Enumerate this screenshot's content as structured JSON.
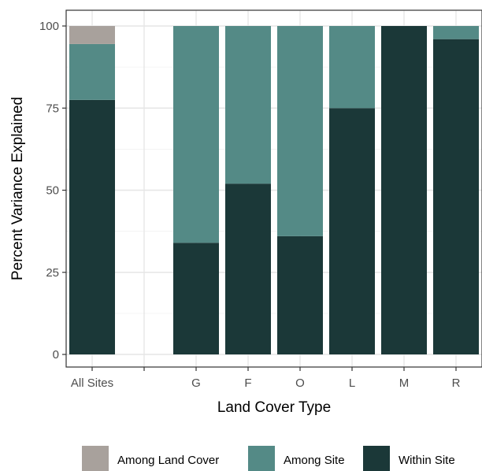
{
  "chart_data": {
    "type": "bar",
    "stacked": true,
    "categories": [
      "All Sites",
      "",
      "G",
      "F",
      "O",
      "L",
      "M",
      "R"
    ],
    "series": [
      {
        "name": "Within Site",
        "color": "#1b3838",
        "values": [
          77.5,
          null,
          34,
          52,
          36,
          75,
          100,
          96
        ]
      },
      {
        "name": "Among Site",
        "color": "#548a86",
        "values": [
          17,
          null,
          66,
          48,
          64,
          25,
          0,
          4
        ]
      },
      {
        "name": "Among Land Cover",
        "color": "#a8a19c",
        "values": [
          5.5,
          null,
          0,
          0,
          0,
          0,
          0,
          0
        ]
      }
    ],
    "legend_order": [
      "Among Land Cover",
      "Among Site",
      "Within Site"
    ],
    "title": "",
    "xlabel": "Land Cover Type",
    "ylabel": "Percent Variance Explained",
    "ylim": [
      0,
      100
    ],
    "yticks": [
      0,
      25,
      50,
      75,
      100
    ],
    "grid": true,
    "legend_position": "bottom",
    "panel_border": true
  }
}
